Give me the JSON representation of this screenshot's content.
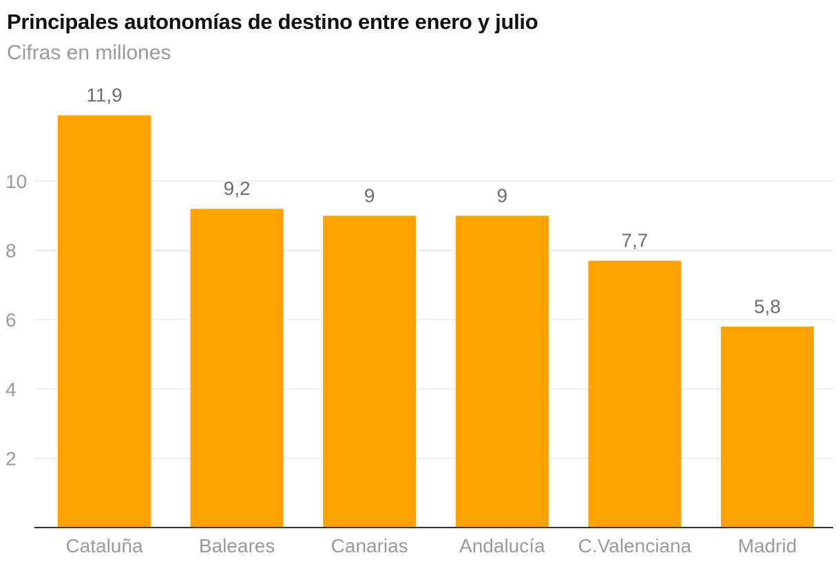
{
  "chart_data": {
    "type": "bar",
    "title": "Principales autonomías de destino entre enero y julio",
    "subtitle": "Cifras en millones",
    "categories": [
      "Cataluña",
      "Baleares",
      "Canarias",
      "Andalucía",
      "C.Valenciana",
      "Madrid"
    ],
    "values": [
      11.9,
      9.2,
      9,
      9,
      7.7,
      5.8
    ],
    "value_labels": [
      "11,9",
      "9,2",
      "9",
      "9",
      "7,7",
      "5,8"
    ],
    "yticks": [
      2,
      4,
      6,
      8,
      10
    ],
    "ylim": [
      0,
      12
    ],
    "grid": true,
    "bar_color": "#ffa200",
    "xlabel": "",
    "ylabel": ""
  }
}
